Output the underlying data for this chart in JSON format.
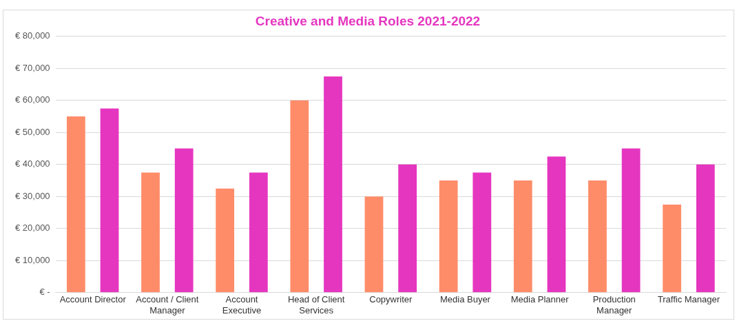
{
  "chart_data": {
    "type": "bar",
    "title": "Creative and Media Roles 2021-2022",
    "categories": [
      "Account Director",
      "Account / Client Manager",
      "Account Executive",
      "Head of Client Services",
      "Copywriter",
      "Media Buyer",
      "Media Planner",
      "Production Manager",
      "Traffic Manager"
    ],
    "series": [
      {
        "color": "#ff8c69",
        "values": [
          55000,
          37500,
          32500,
          60000,
          30000,
          35000,
          35000,
          35000,
          27500
        ]
      },
      {
        "color": "#e536c0",
        "values": [
          57500,
          45000,
          37500,
          67500,
          40000,
          37500,
          42500,
          45000,
          40000
        ]
      }
    ],
    "ylim": [
      0,
      80000
    ],
    "yticks": [
      {
        "value": 0,
        "label": "€ -"
      },
      {
        "value": 10000,
        "label": "€ 10,000"
      },
      {
        "value": 20000,
        "label": "€ 20,000"
      },
      {
        "value": 30000,
        "label": "€ 30,000"
      },
      {
        "value": 40000,
        "label": "€ 40,000"
      },
      {
        "value": 50000,
        "label": "€ 50,000"
      },
      {
        "value": 60000,
        "label": "€ 60,000"
      },
      {
        "value": 70000,
        "label": "€ 70,000"
      },
      {
        "value": 80000,
        "label": "€ 80,000"
      }
    ],
    "grid": "y",
    "legend": false
  }
}
